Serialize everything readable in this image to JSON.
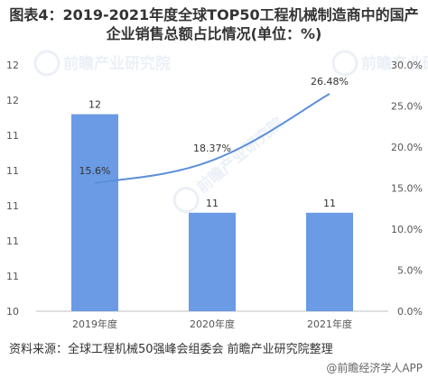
{
  "title_lines": [
    "图表4：2019-2021年度全球TOP50工程机械制造商中的国产",
    "企业销售总额占比情况(单位：%)"
  ],
  "source": "资料来源：全球工程机械50强峰会组委会 前瞻产业研究院整理",
  "corner_watermark": "@前瞻经济学人APP",
  "logo_watermarks": [
    "前瞻产业研究院",
    "前瞻产业研究院",
    "前瞻产业研究院"
  ],
  "colors": {
    "bar": "#6a9be4",
    "line": "#5b8fd9",
    "axis_text": "#555555",
    "grid": "#d9d9d9"
  },
  "chart_data": {
    "type": "bar",
    "categories": [
      "2019年度",
      "2020年度",
      "2021年度"
    ],
    "series": [
      {
        "type": "bar",
        "values": [
          12,
          11,
          11
        ],
        "labels": [
          "12",
          "11",
          "11"
        ],
        "axis": "left"
      },
      {
        "type": "line",
        "values": [
          15.6,
          18.37,
          26.48
        ],
        "labels": [
          "15.6%",
          "18.37%",
          "26.48%"
        ],
        "axis": "right",
        "smooth": true
      }
    ],
    "left_axis": {
      "ticks": [
        "10",
        "11",
        "11",
        "11",
        "11",
        "11",
        "12",
        "12"
      ]
    },
    "right_axis": {
      "ticks": [
        "0.0%",
        "5.0%",
        "10.0%",
        "15.0%",
        "20.0%",
        "25.0%",
        "30.0%"
      ],
      "min": 0,
      "max": 30
    },
    "title": "",
    "xlabel": "",
    "ylabel": ""
  }
}
